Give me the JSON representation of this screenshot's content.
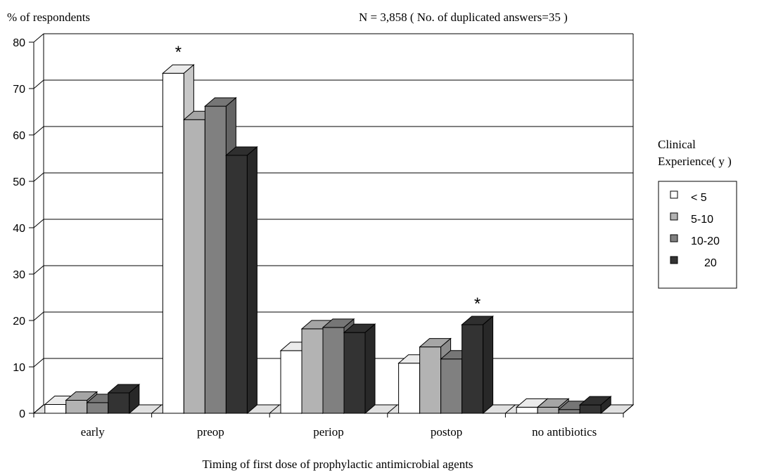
{
  "chart_data": {
    "type": "bar",
    "ylabel": "% of respondents",
    "note": "N = 3,858 ( No.  of duplicated answers=35 )",
    "xlabel": "Timing of first dose of prophylactic antimicrobial agents",
    "ylim": [
      0,
      80
    ],
    "yticks": [
      "0",
      "10",
      "20",
      "30",
      "40",
      "50",
      "60",
      "70",
      "80"
    ],
    "grid": true,
    "categories": [
      "early",
      "preop",
      "periop",
      "postop",
      "no antibiotics"
    ],
    "series": [
      {
        "name": "< 5",
        "color": "#ffffff",
        "values": [
          1.9,
          73.3,
          13.5,
          10.8,
          1.3
        ]
      },
      {
        "name": "5-10",
        "color": "#b3b3b3",
        "values": [
          2.8,
          63.3,
          18.2,
          14.3,
          1.3
        ]
      },
      {
        "name": "10-20",
        "color": "#808080",
        "values": [
          2.3,
          66.2,
          18.5,
          11.7,
          0.8
        ]
      },
      {
        "name": "20",
        "color": "#333333",
        "values": [
          4.4,
          55.6,
          17.4,
          19.1,
          1.8
        ]
      }
    ],
    "annotations": [
      {
        "text": "*",
        "category": "preop",
        "series": "< 5"
      },
      {
        "text": "*",
        "category": "postop",
        "series": "20"
      }
    ],
    "legend": {
      "title_line1": "Clinical",
      "title_line2": "Experience( y )",
      "position": "right"
    }
  }
}
